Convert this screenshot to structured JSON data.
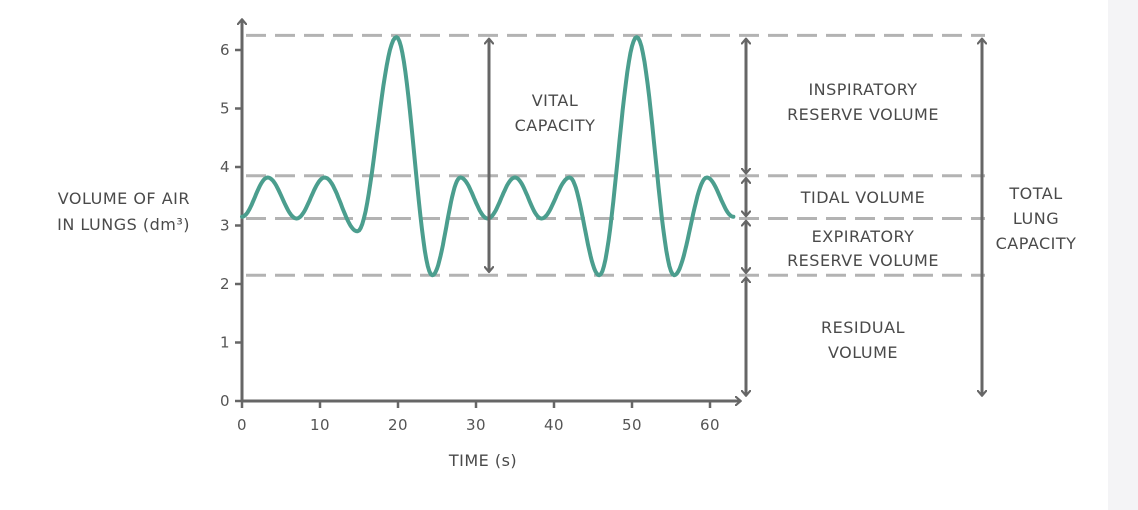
{
  "chart_data": {
    "type": "line",
    "xlabel": "TIME (s)",
    "ylabel": [
      "VOLUME OF AIR",
      "IN LUNGS (dm³)"
    ],
    "xlim": [
      0,
      63
    ],
    "ylim": [
      0,
      6.3
    ],
    "x_ticks": [
      "0",
      "10",
      "20",
      "30",
      "40",
      "50",
      "60"
    ],
    "y_ticks": [
      "0",
      "1",
      "2",
      "3",
      "4",
      "5",
      "6"
    ],
    "reference_levels": {
      "max_inspiration": 6.25,
      "tidal_peak": 3.85,
      "resting_expiration": 3.12,
      "max_expiration": 2.15
    },
    "series": [
      {
        "color": "#4b9e8e",
        "points": [
          [
            0,
            3.15
          ],
          [
            3.3,
            3.82
          ],
          [
            7,
            3.12
          ],
          [
            10.6,
            3.82
          ],
          [
            14.8,
            2.9
          ],
          [
            19.8,
            6.22
          ],
          [
            24.4,
            2.15
          ],
          [
            28,
            3.82
          ],
          [
            31.5,
            3.12
          ],
          [
            35,
            3.82
          ],
          [
            38.4,
            3.12
          ],
          [
            42,
            3.82
          ],
          [
            45.8,
            2.15
          ],
          [
            50.6,
            6.22
          ],
          [
            55.4,
            2.15
          ],
          [
            59.6,
            3.82
          ],
          [
            63,
            3.15
          ]
        ]
      }
    ],
    "annotations": {
      "vital_capacity": [
        "VITAL",
        "CAPACITY"
      ],
      "inspiratory_reserve": [
        "INSPIRATORY",
        "RESERVE VOLUME"
      ],
      "tidal_volume": [
        "TIDAL VOLUME"
      ],
      "expiratory_reserve": [
        "EXPIRATORY",
        "RESERVE VOLUME"
      ],
      "residual_volume": [
        "RESIDUAL",
        "VOLUME"
      ],
      "total_lung_capacity": [
        "TOTAL",
        "LUNG",
        "CAPACITY"
      ]
    },
    "colors": {
      "axis": "#666666",
      "dashed": "#b3b3b3",
      "curve": "#4b9e8e",
      "arrow": "#666666"
    }
  }
}
